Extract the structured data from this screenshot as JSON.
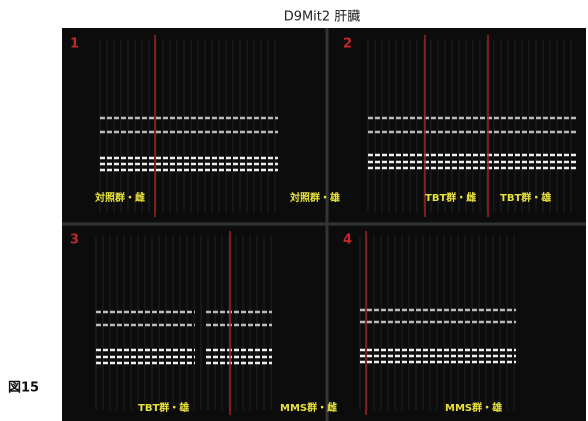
{
  "header": {
    "title": "D9Mit2 肝臓"
  },
  "figure_label": "図15",
  "panels": [
    {
      "number": "1",
      "labels": [
        "対照群・雌",
        "対照群・雄"
      ]
    },
    {
      "number": "2",
      "labels": [
        "TBT群・雌",
        "TBT群・雄"
      ]
    },
    {
      "number": "3",
      "labels": [
        "TBT群・雄",
        "MMS群・雌"
      ]
    },
    {
      "number": "4",
      "labels": [
        "MMS群・雄"
      ]
    }
  ]
}
